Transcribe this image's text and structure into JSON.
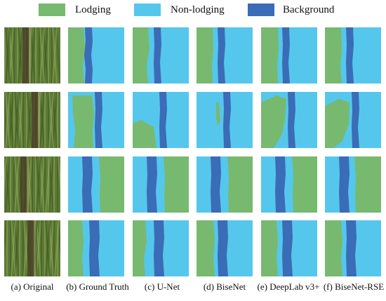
{
  "legend": [
    {
      "label": "Lodging",
      "color": "#77b96f"
    },
    {
      "label": "Non-lodging",
      "color": "#56c7ec"
    },
    {
      "label": "Background",
      "color": "#3a6cb7"
    }
  ],
  "colors": {
    "lodging": "#77b96f",
    "non_lodging": "#56c7ec",
    "background": "#3a6cb7"
  },
  "captions": [
    "(a) Original",
    "(b) Ground Truth",
    "(c) U-Net",
    "(d) BiseNet",
    "(e) DeepLab v3+",
    "(f) BiseNet-RSE"
  ]
}
